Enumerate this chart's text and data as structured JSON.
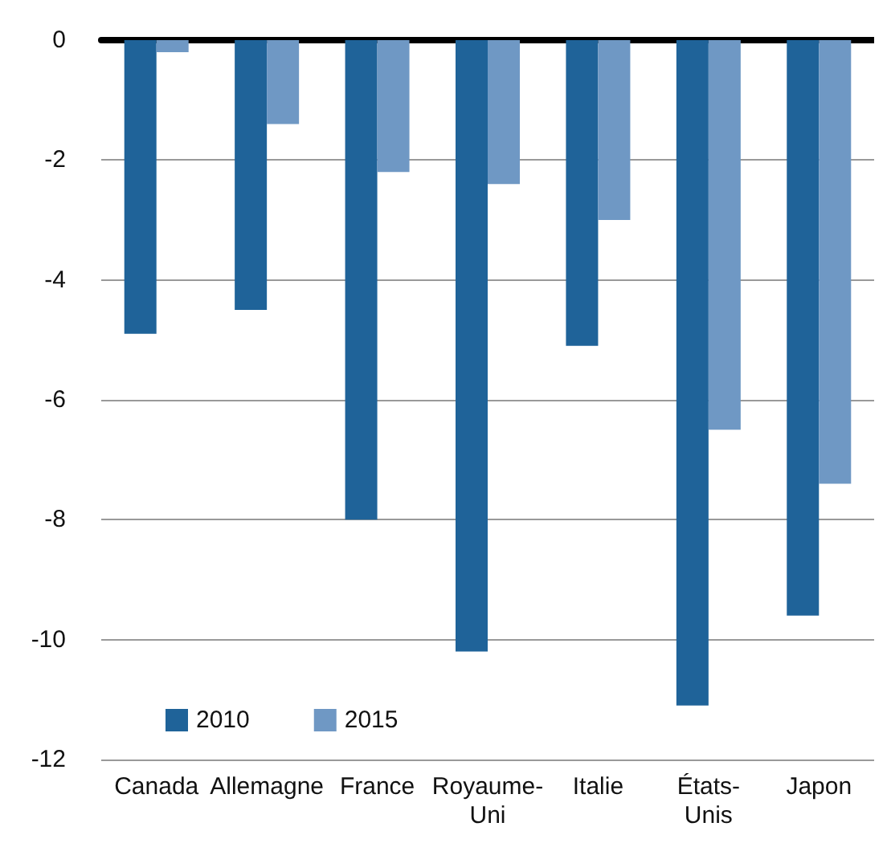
{
  "chart_data": {
    "type": "bar",
    "categories": [
      "Canada",
      "Allemagne",
      "France",
      "Royaume-Uni",
      "Italie",
      "États-Unis",
      "Japon"
    ],
    "series": [
      {
        "name": "2010",
        "color": "#1f6399",
        "values": [
          -4.9,
          -4.5,
          -8.0,
          -10.2,
          -5.1,
          -11.1,
          -9.6
        ]
      },
      {
        "name": "2015",
        "color": "#6f98c4",
        "values": [
          -0.2,
          -1.4,
          -2.2,
          -2.4,
          -3.0,
          -6.5,
          -7.4
        ]
      }
    ],
    "ylim": [
      -12,
      0
    ],
    "yticks": [
      -12,
      -10,
      -8,
      -6,
      -4,
      -2,
      0
    ],
    "grid": "y",
    "legend": "bottom left"
  }
}
